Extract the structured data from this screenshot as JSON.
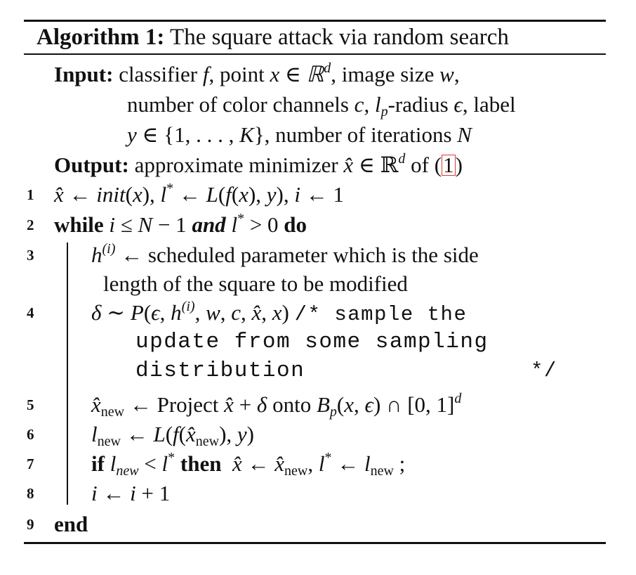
{
  "algorithm": {
    "title_label": "Algorithm 1:",
    "title_text": "The square attack via random search",
    "input_label": "Input:",
    "input_line1_a": "classifier ",
    "input_line1_f": "f",
    "input_line1_b": ", point ",
    "input_line1_x": "x ∈ ℝ",
    "input_line1_d": "d",
    "input_line1_c": ", image size ",
    "input_line1_w": "w",
    "input_line1_e": ",",
    "input_line2_a": "number of color channels ",
    "input_line2_c": "c",
    "input_line2_b": ", ",
    "input_line2_l": "l",
    "input_line2_p": "p",
    "input_line2_d": "-radius ",
    "input_line2_eps": "ϵ",
    "input_line2_e": ", label",
    "input_line3_a": "y",
    "input_line3_b": " ∈ {1, . . . , ",
    "input_line3_K": "K",
    "input_line3_c": "}, number of iterations ",
    "input_line3_N": "N",
    "output_label": "Output:",
    "output_a": "approximate minimizer ",
    "output_xhat": "x̂",
    "output_b": " ∈ ℝ",
    "output_d": "d",
    "output_c": " of (",
    "output_ref": "1",
    "output_e": ")",
    "lines": [
      {
        "num": "1"
      },
      {
        "num": "2"
      },
      {
        "num": "3"
      },
      {
        "num": "4"
      },
      {
        "num": "5"
      },
      {
        "num": "6"
      },
      {
        "num": "7"
      },
      {
        "num": "8"
      },
      {
        "num": "9"
      }
    ],
    "l1_xhat": "x̂",
    "l1_a": " ← ",
    "l1_init": "init",
    "l1_b": "(",
    "l1_x": "x",
    "l1_c": "),  ",
    "l1_l": "l",
    "l1_star": "*",
    "l1_d": " ← ",
    "l1_L": "L",
    "l1_e": "(",
    "l1_f": "f",
    "l1_g": "(",
    "l1_x2": "x",
    "l1_h": "), ",
    "l1_y": "y",
    "l1_i": "),  ",
    "l1_iv": "i",
    "l1_j": " ← 1",
    "l2_while": "while",
    "l2_i": "i",
    "l2_a": " ≤ ",
    "l2_N": "N",
    "l2_b": " − 1 ",
    "l2_and": "and",
    "l2_l": "l",
    "l2_star": "*",
    "l2_c": " > 0 ",
    "l2_do": "do",
    "l3_h": "h",
    "l3_sup": "(i)",
    "l3_a": " ← scheduled parameter which is the side",
    "l3_cont": "length of the square to be modified",
    "l4_delta": "δ",
    "l4_a": " ∼ ",
    "l4_P": "P",
    "l4_b": "(",
    "l4_eps": "ϵ",
    "l4_c": ", ",
    "l4_h": "h",
    "l4_sup": "(i)",
    "l4_d": ", ",
    "l4_w": "w",
    "l4_e": ", ",
    "l4_cc": "c",
    "l4_f": ", ",
    "l4_xhat": "x̂",
    "l4_g": ", ",
    "l4_x": "x",
    "l4_h2": ") ",
    "l4_comment1": "/* sample the",
    "l4_comment2": "update from some sampling",
    "l4_comment3": "distribution",
    "l4_comment_end": "*/",
    "l5_xhat": "x̂",
    "l5_new": "new",
    "l5_a": " ← Project ",
    "l5_xhat2": "x̂",
    "l5_b": " + ",
    "l5_delta": "δ",
    "l5_c": " onto ",
    "l5_B": "B",
    "l5_p": "p",
    "l5_d": "(",
    "l5_x": "x",
    "l5_e": ", ",
    "l5_eps": "ϵ",
    "l5_f": ") ∩ [0, 1]",
    "l5_dd": "d",
    "l6_l": "l",
    "l6_new": "new",
    "l6_a": " ← ",
    "l6_L": "L",
    "l6_b": "(",
    "l6_f": "f",
    "l6_c": "(",
    "l6_xhat": "x̂",
    "l6_new2": "new",
    "l6_d": "), ",
    "l6_y": "y",
    "l6_e": ")",
    "l7_if": "if",
    "l7_l": "l",
    "l7_new": "new",
    "l7_a": " < ",
    "l7_l2": "l",
    "l7_star": "*",
    "l7_then": "then",
    "l7_xhat": "x̂",
    "l7_b": " ← ",
    "l7_xhat2": "x̂",
    "l7_new2": "new",
    "l7_c": ",  ",
    "l7_l3": "l",
    "l7_star2": "*",
    "l7_d": " ← ",
    "l7_l4": "l",
    "l7_new3": "new",
    "l7_e": " ;",
    "l8_i": "i",
    "l8_a": " ← ",
    "l8_i2": "i",
    "l8_b": " + 1",
    "l9_end": "end"
  }
}
